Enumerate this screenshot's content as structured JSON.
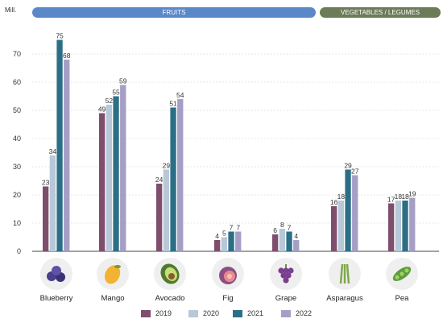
{
  "unit_label": "Mill.",
  "groups": {
    "fruits": "FRUITS",
    "vegetables": "VEGETABLES / LEGUMES"
  },
  "chart_data": {
    "type": "bar",
    "categories": [
      "Blueberry",
      "Mango",
      "Avocado",
      "Fig",
      "Grape",
      "Asparagus",
      "Pea"
    ],
    "series": [
      {
        "name": "2019",
        "color": "#7e4e6d",
        "values": [
          23,
          49,
          24,
          4,
          6,
          16,
          17
        ]
      },
      {
        "name": "2020",
        "color": "#b7c8d9",
        "values": [
          34,
          52,
          29,
          5,
          8,
          18,
          18
        ]
      },
      {
        "name": "2021",
        "color": "#2b6f86",
        "values": [
          75,
          55,
          51,
          7,
          7,
          29,
          18
        ]
      },
      {
        "name": "2022",
        "color": "#a59fc6",
        "values": [
          68,
          59,
          54,
          7,
          4,
          27,
          19
        ]
      }
    ],
    "ylim": [
      0,
      80
    ],
    "yticks": [
      0,
      10,
      20,
      30,
      40,
      50,
      60,
      70
    ],
    "ytick_labels": [
      "0",
      "10",
      "20",
      "30",
      "40",
      "50",
      "60",
      "70"
    ],
    "grid": true,
    "legend_position": "bottom"
  }
}
